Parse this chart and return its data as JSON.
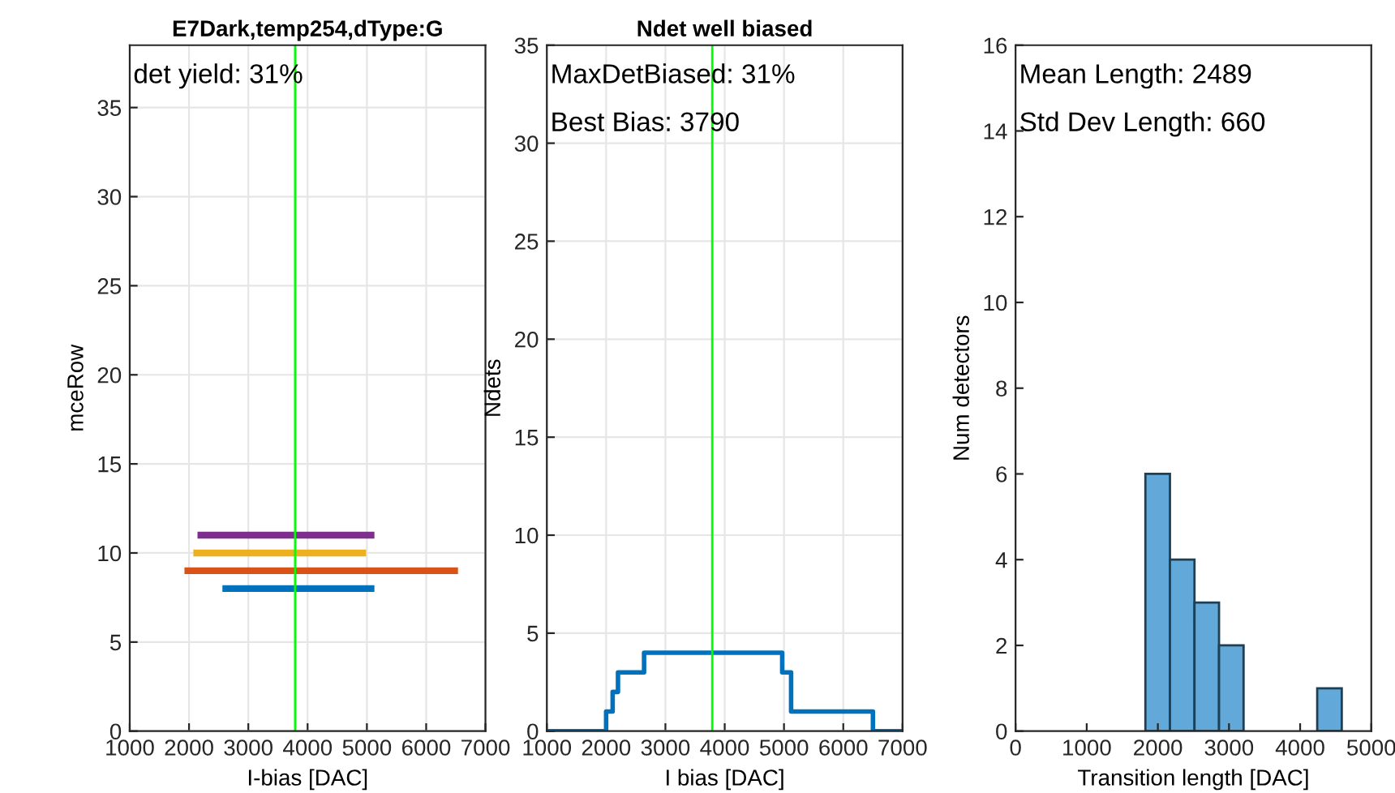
{
  "chart_data": [
    {
      "type": "line",
      "title": "E7Dark,temp254,dType:G",
      "xlabel": "I-bias [DAC]",
      "ylabel": "mceRow",
      "series": [
        {
          "color": "#0072bd",
          "x": [
            2620,
            5070
          ],
          "values": [
            8,
            8
          ]
        },
        {
          "color": "#d95319",
          "x": [
            1980,
            6480
          ],
          "values": [
            9,
            9
          ]
        },
        {
          "color": "#edb120",
          "x": [
            2130,
            4930
          ],
          "values": [
            10,
            10
          ]
        },
        {
          "color": "#7e2f8e",
          "x": [
            2200,
            5070
          ],
          "values": [
            11,
            11
          ]
        }
      ],
      "xlim": [
        1000,
        7000
      ],
      "xticks": [
        1000,
        2000,
        3000,
        4000,
        5000,
        6000,
        7000
      ],
      "ylim": [
        0,
        38.5
      ],
      "yticks": [
        0,
        5,
        10,
        15,
        20,
        25,
        30,
        35
      ],
      "ref_lines": [
        {
          "axis": "x",
          "value": 3790,
          "color": "#00ff00"
        }
      ],
      "annotations": [
        "det yield: 31%"
      ],
      "grid": true,
      "line_style": "solid"
    },
    {
      "type": "step",
      "title": "Ndet well biased",
      "xlabel": "I bias [DAC]",
      "ylabel": "Ndets",
      "series": [
        {
          "color": "#0072bd",
          "x": [
            1000,
            2000,
            2110,
            2200,
            2640,
            4970,
            5120,
            6500,
            7000
          ],
          "values": [
            0,
            1,
            2,
            3,
            4,
            3,
            1,
            0,
            0
          ]
        }
      ],
      "xlim": [
        1000,
        7000
      ],
      "xticks": [
        1000,
        2000,
        3000,
        4000,
        5000,
        6000,
        7000
      ],
      "ylim": [
        0,
        35
      ],
      "yticks": [
        0,
        5,
        10,
        15,
        20,
        25,
        30,
        35
      ],
      "ref_lines": [
        {
          "axis": "x",
          "value": 3790,
          "color": "#00ff00"
        }
      ],
      "annotations": [
        "MaxDetBiased: 31%",
        "Best Bias: 3790"
      ],
      "grid": true
    },
    {
      "type": "histogram",
      "xlabel": "Transition length [DAC]",
      "ylabel": "Num detectors",
      "bins": [
        1825,
        2170,
        2515,
        2860,
        3205,
        3550,
        3895,
        4240,
        4585
      ],
      "values": [
        6,
        4,
        3,
        2,
        0,
        0,
        0,
        1
      ],
      "color": "#62a8d8",
      "xlim": [
        0,
        5000
      ],
      "xticks": [
        0,
        1000,
        2000,
        3000,
        4000,
        5000
      ],
      "ylim": [
        0,
        16
      ],
      "yticks": [
        0,
        2,
        4,
        6,
        8,
        10,
        12,
        14,
        16
      ],
      "annotations": [
        "Mean Length: 2489",
        "Std Dev Length: 660"
      ],
      "grid": false
    }
  ]
}
